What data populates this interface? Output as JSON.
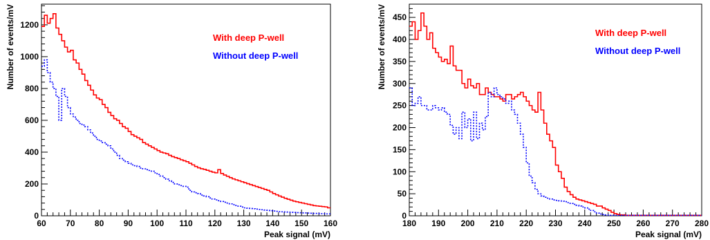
{
  "chart_data": [
    {
      "type": "histogram",
      "xlabel": "Peak signal (mV)",
      "ylabel": "Number of events/mV",
      "xlim": [
        60,
        160
      ],
      "ylim": [
        0,
        1330
      ],
      "x_ticks": [
        60,
        70,
        80,
        90,
        100,
        110,
        120,
        130,
        140,
        150,
        160
      ],
      "y_ticks": [
        0,
        200,
        400,
        600,
        800,
        1000,
        1200
      ],
      "bin_width": 1,
      "legend_placement": "top-right, inside plot",
      "series": [
        {
          "name": "With deep P-well",
          "color": "#ff0000",
          "line_style": "solid",
          "values": [
            1190,
            1260,
            1210,
            1240,
            1270,
            1180,
            1140,
            1100,
            1060,
            1030,
            1040,
            980,
            960,
            920,
            890,
            850,
            820,
            790,
            760,
            740,
            730,
            700,
            680,
            650,
            630,
            610,
            600,
            580,
            560,
            550,
            530,
            510,
            500,
            490,
            480,
            460,
            450,
            440,
            430,
            420,
            410,
            400,
            395,
            390,
            380,
            372,
            366,
            360,
            352,
            346,
            340,
            330,
            320,
            310,
            302,
            296,
            292,
            286,
            280,
            274,
            270,
            290,
            266,
            256,
            248,
            240,
            232,
            226,
            220,
            214,
            208,
            202,
            196,
            190,
            184,
            178,
            172,
            166,
            160,
            150,
            140,
            132,
            124,
            117,
            110,
            104,
            98,
            92,
            88,
            84,
            80,
            76,
            72,
            68,
            64,
            62,
            60,
            58,
            56,
            50
          ]
        },
        {
          "name": "Without deep P-well",
          "color": "#0000ff",
          "line_style": "dotted",
          "values": [
            940,
            980,
            900,
            840,
            800,
            750,
            600,
            800,
            750,
            680,
            640,
            620,
            600,
            580,
            570,
            560,
            540,
            520,
            500,
            480,
            470,
            460,
            450,
            440,
            420,
            400,
            380,
            360,
            350,
            340,
            330,
            320,
            315,
            310,
            300,
            295,
            290,
            285,
            280,
            270,
            260,
            250,
            240,
            230,
            220,
            210,
            200,
            195,
            190,
            185,
            180,
            160,
            150,
            145,
            140,
            130,
            125,
            120,
            112,
            105,
            100,
            95,
            90,
            85,
            80,
            75,
            70,
            65,
            60,
            55,
            50,
            48,
            46,
            44,
            42,
            40,
            38,
            36,
            34,
            32,
            30,
            28,
            26,
            25,
            24,
            23,
            22,
            21,
            20,
            19,
            18,
            18,
            17,
            16,
            15,
            15,
            14,
            13,
            12,
            12
          ]
        }
      ]
    },
    {
      "type": "histogram",
      "xlabel": "Peak signal (mV)",
      "ylabel": "Number of events/mV",
      "xlim": [
        180,
        280
      ],
      "ylim": [
        0,
        480
      ],
      "x_ticks": [
        180,
        190,
        200,
        210,
        220,
        230,
        240,
        250,
        260,
        270,
        280
      ],
      "y_ticks": [
        0,
        50,
        100,
        150,
        200,
        250,
        300,
        350,
        400,
        450
      ],
      "bin_width": 1,
      "legend_placement": "top-right, inside plot",
      "series": [
        {
          "name": "With deep P-well",
          "color": "#ff0000",
          "line_style": "solid",
          "values": [
            430,
            440,
            400,
            420,
            460,
            430,
            400,
            415,
            380,
            370,
            360,
            350,
            355,
            345,
            385,
            340,
            330,
            330,
            300,
            290,
            310,
            295,
            290,
            300,
            275,
            275,
            290,
            280,
            275,
            270,
            270,
            265,
            260,
            275,
            275,
            265,
            270,
            275,
            280,
            270,
            260,
            250,
            240,
            235,
            280,
            240,
            210,
            185,
            170,
            155,
            115,
            100,
            85,
            65,
            55,
            48,
            42,
            38,
            36,
            34,
            32,
            30,
            28,
            26,
            22,
            22,
            18,
            15,
            12,
            8,
            5,
            3,
            2,
            2,
            1,
            1,
            1,
            1,
            1,
            1,
            1,
            1,
            1,
            1,
            1,
            1,
            1,
            1,
            1,
            1,
            1,
            1,
            1,
            1,
            1,
            1,
            1,
            1,
            1,
            1
          ]
        },
        {
          "name": "Without deep P-well",
          "color": "#0000ff",
          "line_style": "dotted",
          "values": [
            290,
            250,
            255,
            270,
            250,
            250,
            240,
            240,
            250,
            245,
            240,
            245,
            235,
            230,
            205,
            185,
            200,
            175,
            235,
            200,
            220,
            170,
            235,
            175,
            210,
            195,
            225,
            280,
            270,
            290,
            275,
            270,
            265,
            255,
            260,
            240,
            230,
            210,
            185,
            155,
            120,
            90,
            75,
            60,
            50,
            45,
            42,
            40,
            38,
            36,
            35,
            34,
            33,
            32,
            30,
            28,
            26,
            24,
            22,
            20,
            18,
            15,
            12,
            9,
            6,
            4,
            3,
            2,
            1,
            1,
            1,
            1,
            1,
            1,
            1,
            1,
            1,
            1,
            1,
            1,
            1,
            1,
            1,
            1,
            1,
            1,
            1,
            1,
            1,
            1,
            1,
            1,
            1,
            1,
            1,
            1,
            1,
            1,
            1,
            1
          ]
        }
      ]
    }
  ]
}
